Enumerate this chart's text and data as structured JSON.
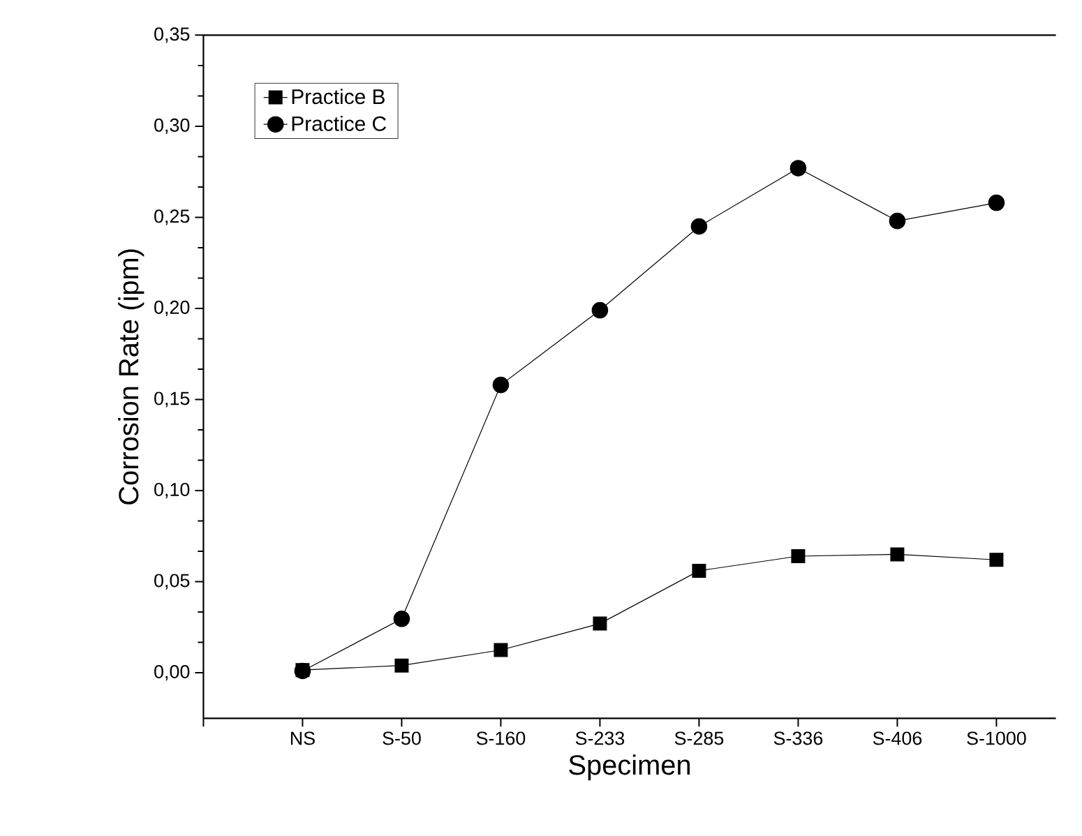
{
  "chart_data": {
    "type": "line",
    "xlabel": "Specimen",
    "ylabel": "Corrosion Rate (ipm)",
    "categories": [
      "NS",
      "S-50",
      "S-160",
      "S-233",
      "S-285",
      "S-336",
      "S-406",
      "S-1000"
    ],
    "series": [
      {
        "name": "Practice B",
        "color": "#000000",
        "marker": "square",
        "values": [
          0.0015,
          0.004,
          0.0125,
          0.027,
          0.056,
          0.064,
          0.065,
          0.062
        ]
      },
      {
        "name": "Practice C",
        "color": "#000000",
        "marker": "circle",
        "values": [
          0.001,
          0.0296,
          0.158,
          0.199,
          0.245,
          0.277,
          0.248,
          0.258
        ]
      }
    ],
    "ylim": [
      -0.025,
      0.35
    ],
    "yticks": [
      {
        "value": 0,
        "label": "0,00"
      },
      {
        "value": 0.05,
        "label": "0,05"
      },
      {
        "value": 0.1,
        "label": "0,10"
      },
      {
        "value": 0.15,
        "label": "0,15"
      },
      {
        "value": 0.2,
        "label": "0,20"
      },
      {
        "value": 0.25,
        "label": "0,25"
      },
      {
        "value": 0.3,
        "label": "0,30"
      },
      {
        "value": 0.35,
        "label": "0,35"
      }
    ],
    "grid": false,
    "legend": "top left",
    "line_style": "solid"
  }
}
